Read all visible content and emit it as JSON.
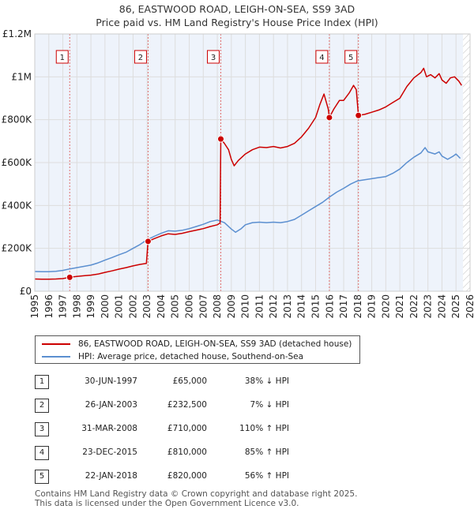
{
  "chart_data": {
    "type": "line",
    "title": "86, EASTWOOD ROAD, LEIGH-ON-SEA, SS9 3AD",
    "subtitle": "Price paid vs. HM Land Registry's House Price Index (HPI)",
    "xlim": [
      1995,
      2026
    ],
    "ylim": [
      0,
      1200000
    ],
    "x_ticks": [
      1995,
      1996,
      1997,
      1998,
      1999,
      2000,
      2001,
      2002,
      2003,
      2004,
      2005,
      2006,
      2007,
      2008,
      2009,
      2010,
      2011,
      2012,
      2013,
      2014,
      2015,
      2016,
      2017,
      2018,
      2019,
      2020,
      2021,
      2022,
      2023,
      2024,
      2025,
      2026
    ],
    "y_ticks": [
      {
        "value": 0,
        "label": "£0"
      },
      {
        "value": 200000,
        "label": "£200K"
      },
      {
        "value": 400000,
        "label": "£400K"
      },
      {
        "value": 600000,
        "label": "£600K"
      },
      {
        "value": 800000,
        "label": "£800K"
      },
      {
        "value": 1000000,
        "label": "£1M"
      },
      {
        "value": 1200000,
        "label": "£1.2M"
      }
    ],
    "colors": {
      "property": "#cc0000",
      "hpi": "#5b8fd0",
      "vline": "#e07070",
      "grid": "#dddddd",
      "plot_bg": "#eef3fb",
      "future_hatch": "#bbbbbb"
    },
    "series": [
      {
        "name": "86, EASTWOOD ROAD, LEIGH-ON-SEA, SS9 3AD (detached house)",
        "key": "property",
        "points": [
          [
            1995.0,
            57000
          ],
          [
            1995.5,
            56500
          ],
          [
            1996.0,
            56000
          ],
          [
            1996.5,
            57000
          ],
          [
            1997.0,
            59000
          ],
          [
            1997.49,
            65000
          ],
          [
            1998.0,
            69000
          ],
          [
            1998.5,
            72000
          ],
          [
            1999.0,
            75000
          ],
          [
            1999.5,
            80000
          ],
          [
            2000.0,
            88000
          ],
          [
            2000.5,
            95000
          ],
          [
            2001.0,
            103000
          ],
          [
            2001.5,
            110000
          ],
          [
            2002.0,
            118000
          ],
          [
            2002.5,
            125000
          ],
          [
            2002.95,
            130000
          ],
          [
            2003.07,
            232500
          ],
          [
            2003.5,
            245000
          ],
          [
            2004.0,
            258000
          ],
          [
            2004.5,
            268000
          ],
          [
            2005.0,
            265000
          ],
          [
            2005.5,
            270000
          ],
          [
            2006.0,
            278000
          ],
          [
            2006.5,
            285000
          ],
          [
            2007.0,
            292000
          ],
          [
            2007.5,
            302000
          ],
          [
            2008.0,
            310000
          ],
          [
            2008.2,
            318000
          ],
          [
            2008.25,
            710000
          ],
          [
            2008.5,
            690000
          ],
          [
            2008.8,
            660000
          ],
          [
            2009.0,
            615000
          ],
          [
            2009.2,
            585000
          ],
          [
            2009.5,
            610000
          ],
          [
            2010.0,
            640000
          ],
          [
            2010.5,
            660000
          ],
          [
            2011.0,
            672000
          ],
          [
            2011.5,
            670000
          ],
          [
            2012.0,
            675000
          ],
          [
            2012.5,
            668000
          ],
          [
            2013.0,
            675000
          ],
          [
            2013.5,
            690000
          ],
          [
            2014.0,
            720000
          ],
          [
            2014.5,
            760000
          ],
          [
            2015.0,
            810000
          ],
          [
            2015.3,
            870000
          ],
          [
            2015.6,
            920000
          ],
          [
            2015.9,
            850000
          ],
          [
            2015.98,
            810000
          ],
          [
            2016.3,
            850000
          ],
          [
            2016.7,
            890000
          ],
          [
            2017.0,
            890000
          ],
          [
            2017.4,
            925000
          ],
          [
            2017.7,
            960000
          ],
          [
            2017.9,
            940000
          ],
          [
            2018.05,
            820000
          ],
          [
            2018.5,
            825000
          ],
          [
            2019.0,
            835000
          ],
          [
            2019.5,
            845000
          ],
          [
            2020.0,
            860000
          ],
          [
            2020.5,
            880000
          ],
          [
            2021.0,
            900000
          ],
          [
            2021.5,
            955000
          ],
          [
            2022.0,
            995000
          ],
          [
            2022.5,
            1020000
          ],
          [
            2022.7,
            1040000
          ],
          [
            2022.9,
            1000000
          ],
          [
            2023.2,
            1010000
          ],
          [
            2023.5,
            995000
          ],
          [
            2023.8,
            1015000
          ],
          [
            2024.0,
            985000
          ],
          [
            2024.3,
            970000
          ],
          [
            2024.6,
            995000
          ],
          [
            2024.9,
            1000000
          ],
          [
            2025.2,
            980000
          ],
          [
            2025.4,
            960000
          ]
        ]
      },
      {
        "name": "HPI: Average price, detached house, Southend-on-Sea",
        "key": "hpi",
        "points": [
          [
            1995.0,
            92000
          ],
          [
            1995.5,
            91000
          ],
          [
            1996.0,
            91000
          ],
          [
            1996.5,
            93000
          ],
          [
            1997.0,
            97000
          ],
          [
            1997.5,
            104000
          ],
          [
            1998.0,
            110000
          ],
          [
            1998.5,
            116000
          ],
          [
            1999.0,
            122000
          ],
          [
            1999.5,
            132000
          ],
          [
            2000.0,
            145000
          ],
          [
            2000.5,
            157000
          ],
          [
            2001.0,
            170000
          ],
          [
            2001.5,
            182000
          ],
          [
            2002.0,
            200000
          ],
          [
            2002.5,
            218000
          ],
          [
            2003.0,
            240000
          ],
          [
            2003.5,
            256000
          ],
          [
            2004.0,
            270000
          ],
          [
            2004.5,
            282000
          ],
          [
            2005.0,
            280000
          ],
          [
            2005.5,
            284000
          ],
          [
            2006.0,
            292000
          ],
          [
            2006.5,
            302000
          ],
          [
            2007.0,
            312000
          ],
          [
            2007.5,
            325000
          ],
          [
            2008.0,
            332000
          ],
          [
            2008.5,
            320000
          ],
          [
            2009.0,
            290000
          ],
          [
            2009.3,
            275000
          ],
          [
            2009.7,
            292000
          ],
          [
            2010.0,
            310000
          ],
          [
            2010.5,
            320000
          ],
          [
            2011.0,
            322000
          ],
          [
            2011.5,
            320000
          ],
          [
            2012.0,
            322000
          ],
          [
            2012.5,
            320000
          ],
          [
            2013.0,
            325000
          ],
          [
            2013.5,
            335000
          ],
          [
            2014.0,
            355000
          ],
          [
            2014.5,
            375000
          ],
          [
            2015.0,
            395000
          ],
          [
            2015.5,
            415000
          ],
          [
            2016.0,
            440000
          ],
          [
            2016.5,
            462000
          ],
          [
            2017.0,
            480000
          ],
          [
            2017.5,
            500000
          ],
          [
            2018.0,
            515000
          ],
          [
            2018.5,
            520000
          ],
          [
            2019.0,
            525000
          ],
          [
            2019.5,
            530000
          ],
          [
            2020.0,
            535000
          ],
          [
            2020.5,
            550000
          ],
          [
            2021.0,
            570000
          ],
          [
            2021.5,
            600000
          ],
          [
            2022.0,
            625000
          ],
          [
            2022.5,
            645000
          ],
          [
            2022.8,
            670000
          ],
          [
            2023.0,
            650000
          ],
          [
            2023.5,
            640000
          ],
          [
            2023.8,
            650000
          ],
          [
            2024.0,
            630000
          ],
          [
            2024.4,
            615000
          ],
          [
            2024.8,
            630000
          ],
          [
            2025.0,
            640000
          ],
          [
            2025.3,
            620000
          ]
        ]
      }
    ],
    "transactions": [
      {
        "id": "1",
        "x": 1997.49,
        "y": 65000
      },
      {
        "id": "2",
        "x": 2003.07,
        "y": 232500
      },
      {
        "id": "3",
        "x": 2008.25,
        "y": 710000
      },
      {
        "id": "4",
        "x": 2015.98,
        "y": 810000
      },
      {
        "id": "5",
        "x": 2018.05,
        "y": 820000
      }
    ],
    "future_from": 2025.5
  },
  "legend": {
    "property_label": "86, EASTWOOD ROAD, LEIGH-ON-SEA, SS9 3AD (detached house)",
    "hpi_label": "HPI: Average price, detached house, Southend-on-Sea"
  },
  "table": [
    {
      "num": "1",
      "date": "30-JUN-1997",
      "price": "£65,000",
      "hpi": "38% ↓ HPI"
    },
    {
      "num": "2",
      "date": "26-JAN-2003",
      "price": "£232,500",
      "hpi": "7% ↓ HPI"
    },
    {
      "num": "3",
      "date": "31-MAR-2008",
      "price": "£710,000",
      "hpi": "110% ↑ HPI"
    },
    {
      "num": "4",
      "date": "23-DEC-2015",
      "price": "£810,000",
      "hpi": "85% ↑ HPI"
    },
    {
      "num": "5",
      "date": "22-JAN-2018",
      "price": "£820,000",
      "hpi": "56% ↑ HPI"
    }
  ],
  "footer": {
    "line1": "Contains HM Land Registry data © Crown copyright and database right 2025.",
    "line2": "This data is licensed under the Open Government Licence v3.0."
  }
}
